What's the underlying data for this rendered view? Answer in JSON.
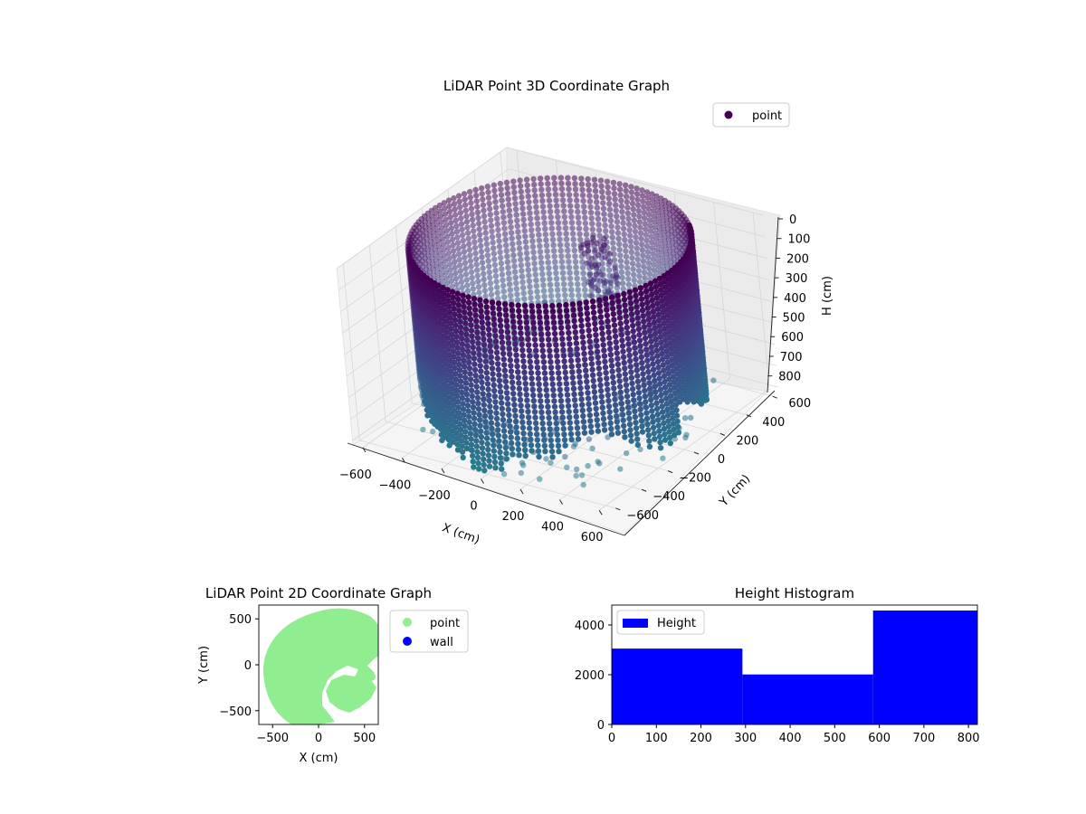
{
  "chart_data": [
    {
      "type": "scatter",
      "title": "LiDAR Point 3D Coordinate Graph",
      "xlabel": "X (cm)",
      "ylabel": "Y (cm)",
      "zlabel": "H (cm)",
      "xlim": [
        -650,
        650
      ],
      "ylim": [
        -650,
        650
      ],
      "zlim": [
        0,
        820
      ],
      "z_inverted": true,
      "x_ticks": [
        "−600",
        "−400",
        "−200",
        "0",
        "200",
        "400",
        "600"
      ],
      "y_ticks": [
        "−600",
        "−400",
        "−200",
        "0",
        "200",
        "400",
        "600"
      ],
      "z_ticks": [
        "0",
        "100",
        "200",
        "300",
        "400",
        "500",
        "600",
        "700",
        "800"
      ],
      "legend": {
        "entries": [
          {
            "label": "point",
            "color": "#440154"
          }
        ],
        "position": "top-right"
      },
      "grid": true,
      "cylinder_radius": 600,
      "colormap": "viridis"
    },
    {
      "type": "scatter",
      "title": "LiDAR Point 2D Coordinate Graph",
      "xlabel": "X (cm)",
      "ylabel": "Y (cm)",
      "xlim": [
        -650,
        650
      ],
      "ylim": [
        -650,
        650
      ],
      "x_ticks": [
        "−500",
        "0",
        "500"
      ],
      "y_ticks": [
        "−500",
        "0",
        "500"
      ],
      "series": [
        {
          "name": "point",
          "color": "#90ee90"
        },
        {
          "name": "wall",
          "color": "#0000ff"
        }
      ],
      "legend_position": "outside-right"
    },
    {
      "type": "bar",
      "title": "Height Histogram",
      "bins": [
        {
          "x0": 0,
          "x1": 293,
          "value": 3050
        },
        {
          "x0": 293,
          "x1": 586,
          "value": 2010
        },
        {
          "x0": 586,
          "x1": 820,
          "value": 4580
        }
      ],
      "xlim": [
        0,
        820
      ],
      "ylim": [
        0,
        4800
      ],
      "x_ticks": [
        "0",
        "100",
        "200",
        "300",
        "400",
        "500",
        "600",
        "700",
        "800"
      ],
      "y_ticks": [
        "0",
        "2000",
        "4000"
      ],
      "series": [
        {
          "name": "Height",
          "color": "#0000ff"
        }
      ],
      "legend_position": "top-left"
    }
  ]
}
